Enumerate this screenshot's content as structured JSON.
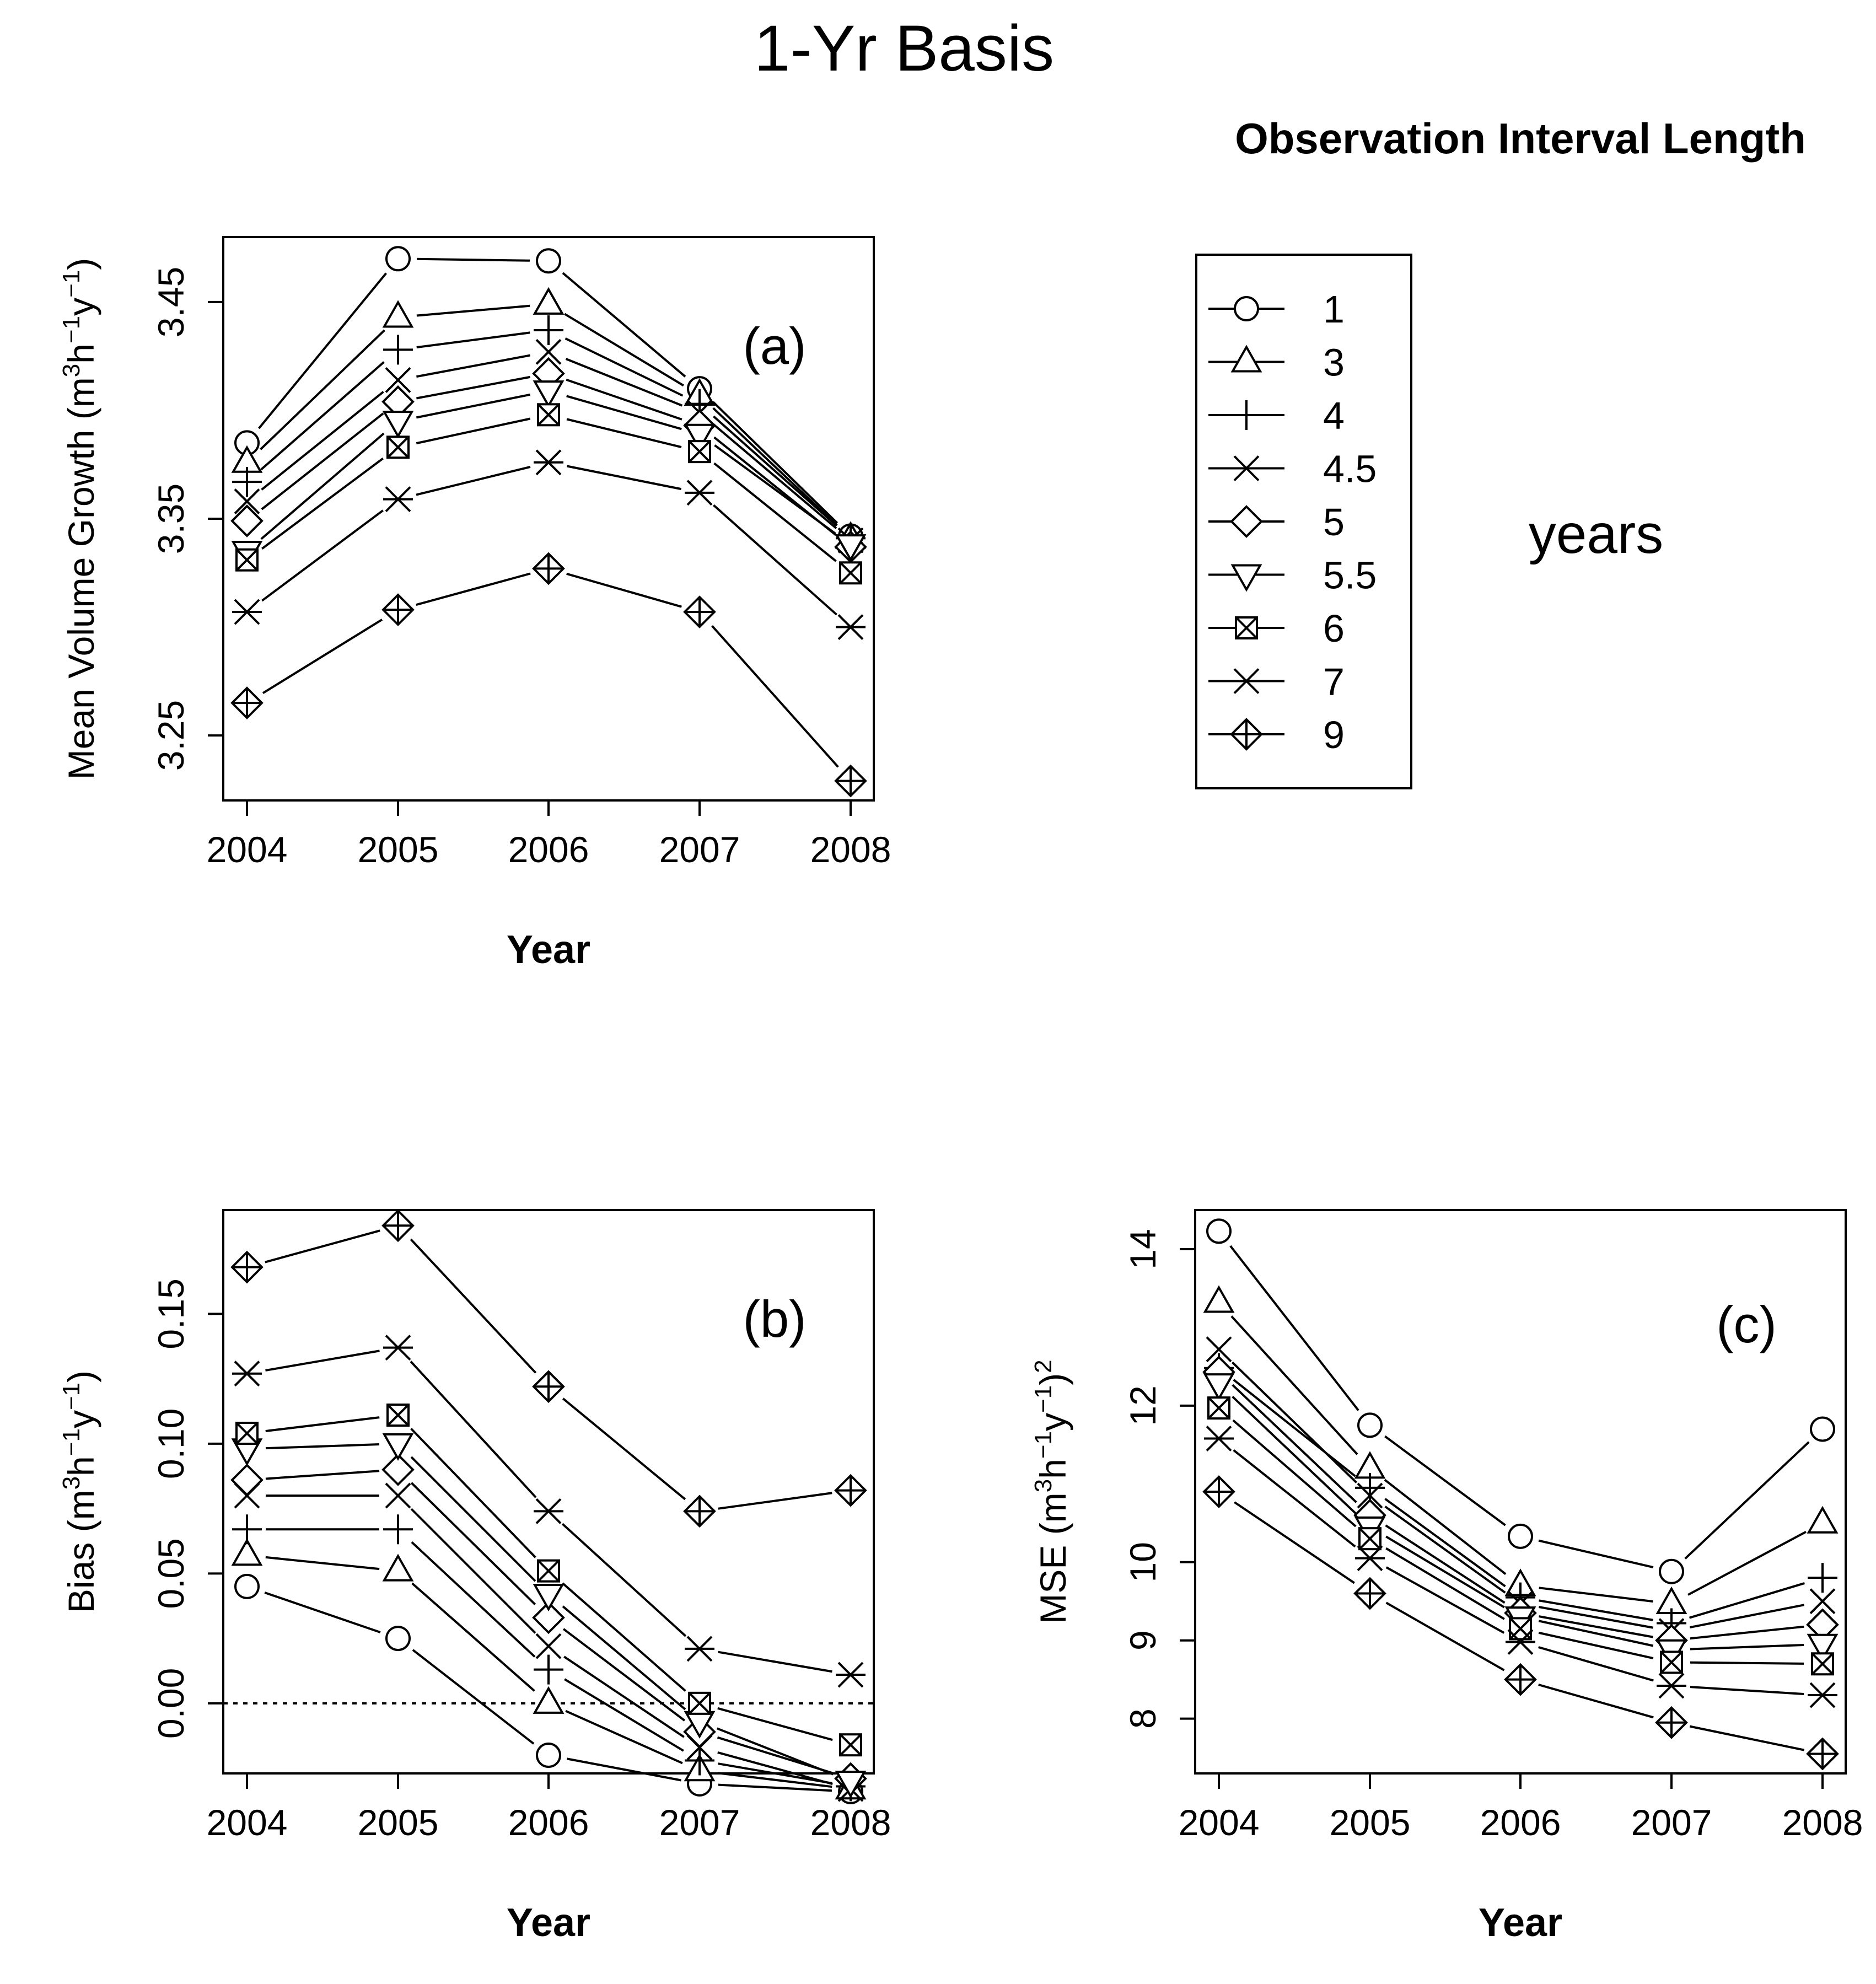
{
  "figure_title": "1-Yr Basis",
  "legend": {
    "title": "Observation Interval Length",
    "unit_label": "years",
    "entries": [
      {
        "label": "1",
        "symbol": "circle"
      },
      {
        "label": "3",
        "symbol": "triangle-up"
      },
      {
        "label": "4",
        "symbol": "plus"
      },
      {
        "label": "4.5",
        "symbol": "cross"
      },
      {
        "label": "5",
        "symbol": "diamond"
      },
      {
        "label": "5.5",
        "symbol": "triangle-down"
      },
      {
        "label": "6",
        "symbol": "boxed-cross"
      },
      {
        "label": "7",
        "symbol": "asterisk"
      },
      {
        "label": "9",
        "symbol": "diamond-plus"
      }
    ]
  },
  "chart_data": [
    {
      "id": "a",
      "type": "line",
      "panel_label": "(a)",
      "xlabel": "Year",
      "ylabel": "Mean Volume Growth",
      "ylabel_unit": [
        "(",
        "m",
        "3",
        "h",
        "−1",
        "y",
        "−1",
        ")"
      ],
      "categories": [
        "2004",
        "2005",
        "2006",
        "2007",
        "2008"
      ],
      "ylim": [
        3.22,
        3.48
      ],
      "yticks": [
        3.25,
        3.35,
        3.45
      ],
      "ytick_labels": [
        "3.25",
        "3.35",
        "3.45"
      ],
      "series": [
        {
          "name": "1",
          "values": [
            3.385,
            3.47,
            3.469,
            3.41,
            3.342
          ]
        },
        {
          "name": "3",
          "values": [
            3.376,
            3.443,
            3.449,
            3.407,
            3.341
          ]
        },
        {
          "name": "4",
          "values": [
            3.367,
            3.428,
            3.437,
            3.403,
            3.341
          ]
        },
        {
          "name": "4.5",
          "values": [
            3.358,
            3.414,
            3.427,
            3.399,
            3.34
          ]
        },
        {
          "name": "5",
          "values": [
            3.349,
            3.404,
            3.417,
            3.393,
            3.337
          ]
        },
        {
          "name": "5.5",
          "values": [
            3.335,
            3.395,
            3.409,
            3.389,
            3.338
          ]
        },
        {
          "name": "6",
          "values": [
            3.331,
            3.383,
            3.398,
            3.381,
            3.325
          ]
        },
        {
          "name": "7",
          "values": [
            3.307,
            3.359,
            3.376,
            3.362,
            3.3
          ]
        },
        {
          "name": "9",
          "values": [
            3.265,
            3.308,
            3.327,
            3.307,
            3.229
          ]
        }
      ]
    },
    {
      "id": "b",
      "type": "line",
      "panel_label": "(b)",
      "xlabel": "Year",
      "ylabel": "Bias",
      "ylabel_unit": [
        "(",
        "m",
        "3",
        "h",
        "−1",
        "y",
        "−1",
        ")"
      ],
      "categories": [
        "2004",
        "2005",
        "2006",
        "2007",
        "2008"
      ],
      "ylim": [
        -0.027,
        0.19
      ],
      "yticks": [
        0.0,
        0.05,
        0.1,
        0.15
      ],
      "ytick_labels": [
        "0.00",
        "0.05",
        "0.10",
        "0.15"
      ],
      "reference_line": 0,
      "series": [
        {
          "name": "1",
          "values": [
            0.045,
            0.025,
            -0.02,
            -0.031,
            -0.034
          ]
        },
        {
          "name": "3",
          "values": [
            0.057,
            0.051,
            0.0,
            -0.026,
            -0.033
          ]
        },
        {
          "name": "4",
          "values": [
            0.067,
            0.067,
            0.013,
            -0.022,
            -0.032
          ]
        },
        {
          "name": "4.5",
          "values": [
            0.08,
            0.08,
            0.022,
            -0.017,
            -0.033
          ]
        },
        {
          "name": "5",
          "values": [
            0.086,
            0.09,
            0.033,
            -0.011,
            -0.029
          ]
        },
        {
          "name": "5.5",
          "values": [
            0.098,
            0.1,
            0.042,
            -0.007,
            -0.03
          ]
        },
        {
          "name": "6",
          "values": [
            0.104,
            0.111,
            0.051,
            0.0,
            -0.016
          ]
        },
        {
          "name": "7",
          "values": [
            0.127,
            0.137,
            0.074,
            0.021,
            0.011
          ]
        },
        {
          "name": "9",
          "values": [
            0.168,
            0.184,
            0.122,
            0.074,
            0.082
          ]
        }
      ]
    },
    {
      "id": "c",
      "type": "line",
      "panel_label": "(c)",
      "xlabel": "Year",
      "ylabel": "MSE",
      "ylabel_unit": [
        "(",
        "m",
        "3",
        "h",
        "−1",
        "y",
        "−1",
        ")",
        "2"
      ],
      "categories": [
        "2004",
        "2005",
        "2006",
        "2007",
        "2008"
      ],
      "ylim": [
        7.3,
        14.5
      ],
      "yticks": [
        8,
        9,
        10,
        12,
        14
      ],
      "ytick_labels": [
        "8",
        "9",
        "10",
        "12",
        "14"
      ],
      "series": [
        {
          "name": "1",
          "values": [
            14.23,
            11.75,
            10.33,
            9.88,
            11.7
          ]
        },
        {
          "name": "3",
          "values": [
            13.32,
            11.2,
            9.7,
            9.47,
            10.5
          ]
        },
        {
          "name": "4",
          "values": [
            12.48,
            10.95,
            9.55,
            9.22,
            9.8
          ]
        },
        {
          "name": "4.5",
          "values": [
            12.72,
            10.85,
            9.47,
            9.12,
            9.5
          ]
        },
        {
          "name": "5",
          "values": [
            12.43,
            10.6,
            9.35,
            9.0,
            9.2
          ]
        },
        {
          "name": "5.5",
          "values": [
            12.28,
            10.45,
            9.3,
            8.88,
            8.95
          ]
        },
        {
          "name": "6",
          "values": [
            11.97,
            10.3,
            9.15,
            8.72,
            8.7
          ]
        },
        {
          "name": "7",
          "values": [
            11.58,
            10.05,
            8.98,
            8.42,
            8.3
          ]
        },
        {
          "name": "9",
          "values": [
            10.9,
            9.6,
            8.5,
            7.95,
            7.55
          ]
        }
      ]
    }
  ]
}
